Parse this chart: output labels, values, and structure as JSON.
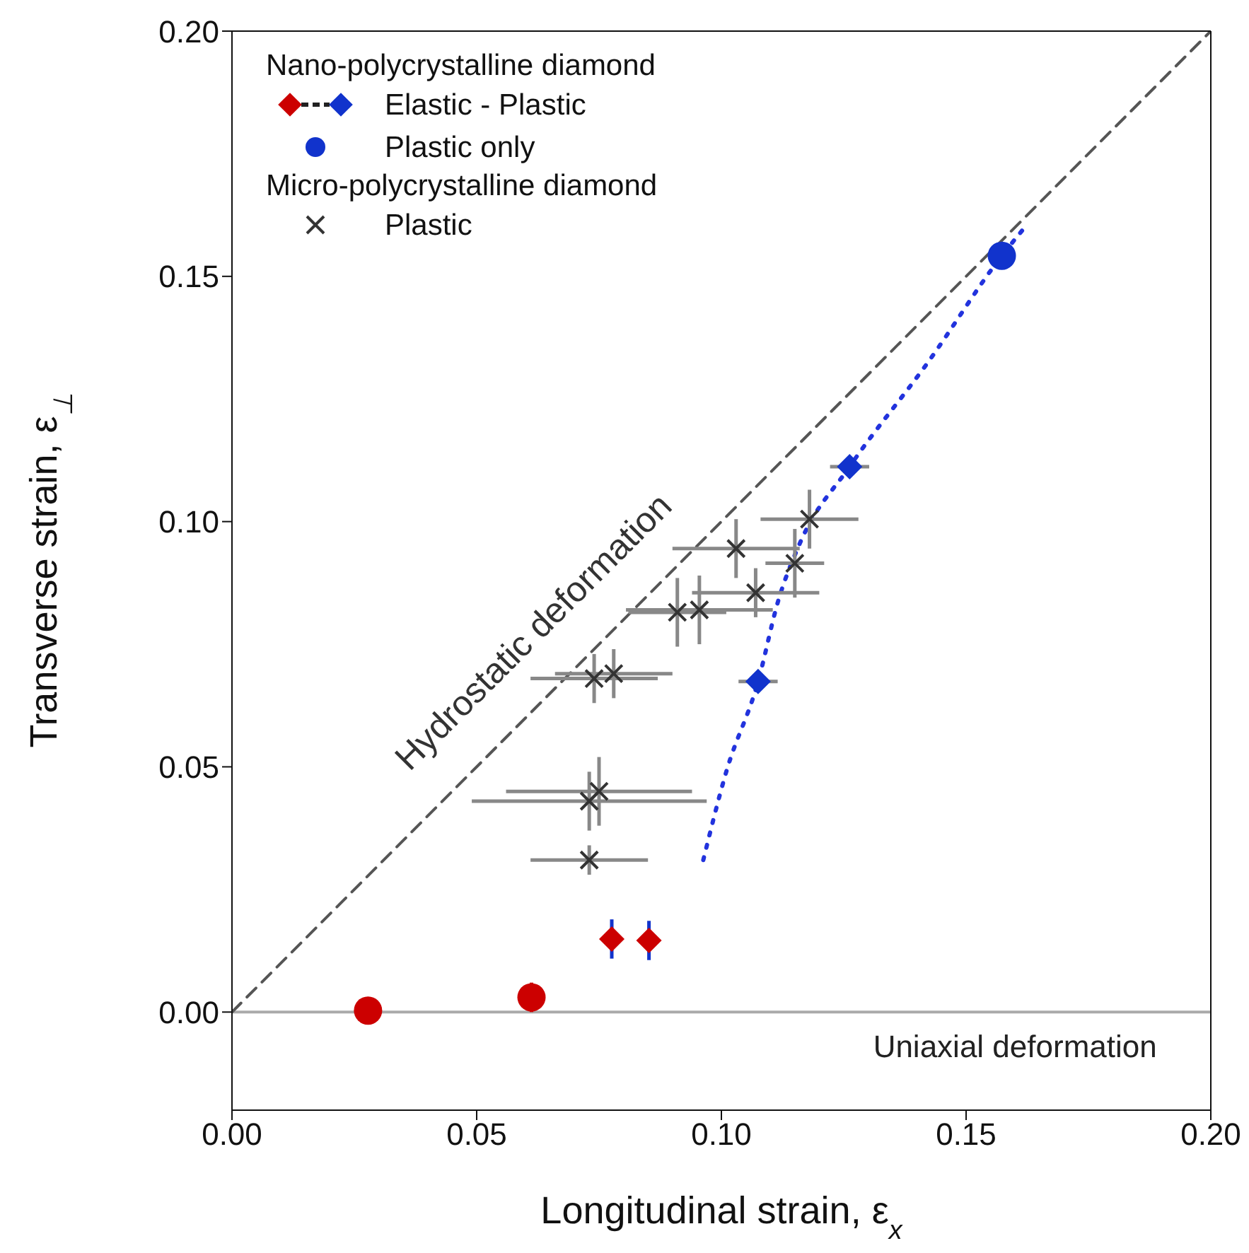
{
  "chart_data": {
    "type": "scatter",
    "xlabel": "Longitudinal strain, ε$_{x}$",
    "ylabel": "Transverse strain, ε$_{⊥}$",
    "xlim": [
      0,
      0.2
    ],
    "ylim": [
      -0.02,
      0.2
    ],
    "xticks": [
      {
        "value": 0,
        "label": "0.00"
      },
      {
        "value": 0.05,
        "label": "0.05"
      },
      {
        "value": 0.1,
        "label": "0.10"
      },
      {
        "value": 0.15,
        "label": "0.15"
      },
      {
        "value": 0.2,
        "label": "0.20"
      }
    ],
    "yticks": [
      {
        "value": 0,
        "label": "0.00"
      },
      {
        "value": 0.05,
        "label": "0.05"
      },
      {
        "value": 0.1,
        "label": "0.10"
      },
      {
        "value": 0.15,
        "label": "0.15"
      },
      {
        "value": 0.2,
        "label": "0.20"
      }
    ],
    "legend": "top left",
    "legend_title": "Nano-polycrystalline diamond",
    "annotations": [
      "Micro-polycrystalline diamond",
      "Hydrostatic deformation"
    ],
    "ref_lines": [
      {
        "axis": "y",
        "value": 0,
        "label": "Uniaxial deformation",
        "color": "#aaaaaa",
        "line_style": "solid"
      }
    ],
    "series": [
      {
        "type": "line",
        "color": "#555555",
        "line_style": "dashed",
        "marker": "none",
        "x": [
          0,
          0.2
        ],
        "values": [
          0,
          0.2
        ]
      },
      {
        "type": "line",
        "color": "#2233dd",
        "line_style": "dotted",
        "marker": "none",
        "x": [
          0.0963,
          0.101,
          0.1075,
          0.1116,
          0.116,
          0.1262,
          0.1423,
          0.1573,
          0.162
        ],
        "values": [
          0.031,
          0.049,
          0.0674,
          0.0838,
          0.0955,
          0.1112,
          0.1326,
          0.1542,
          0.16
        ]
      },
      {
        "name": "Plastic",
        "color": "#333333",
        "marker": "cross",
        "x": [
          0.073,
          0.073,
          0.075,
          0.074,
          0.078,
          0.091,
          0.0955,
          0.107,
          0.103,
          0.115,
          0.118
        ],
        "values": [
          0.031,
          0.043,
          0.045,
          0.068,
          0.069,
          0.0815,
          0.082,
          0.0855,
          0.0945,
          0.0915,
          0.1005
        ],
        "errors": [
          0.003,
          0.006,
          0.007,
          0.005,
          0.005,
          0.007,
          0.007,
          0.005,
          0.006,
          0.007,
          0.006
        ],
        "xerrors": [
          0.012,
          0.024,
          0.019,
          0.013,
          0.012,
          0.01,
          0.015,
          0.013,
          0.013,
          0.006,
          0.01
        ]
      },
      {
        "name": "Elastic - Plastic",
        "color": "#1133cc",
        "colors": [
          "#cc0000",
          "#cc0000",
          "#1133cc",
          "#1133cc"
        ],
        "marker": "diamond",
        "x": [
          0.0776,
          0.0852,
          0.1075,
          0.1262
        ],
        "values": [
          0.0149,
          0.0146,
          0.0674,
          0.1112
        ],
        "errors": [
          0.004,
          0.004,
          null,
          null
        ],
        "xerrors": [
          null,
          null,
          0.004,
          0.004
        ]
      },
      {
        "color": "#cc0000",
        "marker": "circle",
        "x": [
          0.0278,
          0.0612
        ],
        "values": [
          0.0003,
          0.003
        ],
        "errors": [
          null,
          0.003
        ]
      },
      {
        "name": "Plastic only",
        "color": "#1133cc",
        "marker": "circle",
        "x": [
          0.1573
        ],
        "values": [
          0.1542
        ]
      }
    ]
  }
}
